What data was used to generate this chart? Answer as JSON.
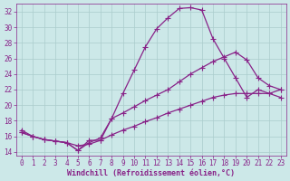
{
  "xlabel": "Windchill (Refroidissement éolien,°C)",
  "bg_color": "#cce8e8",
  "line_color": "#882288",
  "grid_color": "#aacccc",
  "xlim": [
    -0.5,
    23.5
  ],
  "ylim": [
    13.5,
    33.0
  ],
  "yticks": [
    14,
    16,
    18,
    20,
    22,
    24,
    26,
    28,
    30,
    32
  ],
  "xticks": [
    0,
    1,
    2,
    3,
    4,
    5,
    6,
    7,
    8,
    9,
    10,
    11,
    12,
    13,
    14,
    15,
    16,
    17,
    18,
    19,
    20,
    21,
    22,
    23
  ],
  "line1_x": [
    0,
    1,
    2,
    3,
    4,
    5,
    6,
    7,
    8,
    9,
    10,
    11,
    12,
    13,
    14,
    15,
    16,
    17,
    18,
    19,
    20,
    21,
    22,
    23
  ],
  "line1_y": [
    16.8,
    16.0,
    15.6,
    15.4,
    15.2,
    14.2,
    15.5,
    15.5,
    18.3,
    21.5,
    24.5,
    27.5,
    29.8,
    31.2,
    32.4,
    32.5,
    32.2,
    28.5,
    26.0,
    23.5,
    21.0,
    22.0,
    21.5,
    21.0
  ],
  "line2_x": [
    0,
    1,
    2,
    3,
    4,
    5,
    6,
    7,
    8,
    9,
    10,
    11,
    12,
    13,
    14,
    15,
    16,
    17,
    18,
    19,
    20,
    21,
    22,
    23
  ],
  "line2_y": [
    16.5,
    16.0,
    15.6,
    15.4,
    15.2,
    14.2,
    15.2,
    15.8,
    18.3,
    19.0,
    19.8,
    20.6,
    21.3,
    22.0,
    23.0,
    24.0,
    24.8,
    25.6,
    26.2,
    26.8,
    25.8,
    23.5,
    22.5,
    22.0
  ],
  "line3_x": [
    0,
    1,
    2,
    3,
    4,
    5,
    6,
    7,
    8,
    9,
    10,
    11,
    12,
    13,
    14,
    15,
    16,
    17,
    18,
    19,
    20,
    21,
    22,
    23
  ],
  "line3_y": [
    16.5,
    16.0,
    15.6,
    15.4,
    15.2,
    14.8,
    15.0,
    15.5,
    16.2,
    16.8,
    17.3,
    17.9,
    18.4,
    19.0,
    19.5,
    20.0,
    20.5,
    21.0,
    21.3,
    21.5,
    21.5,
    21.5,
    21.5,
    22.0
  ],
  "marker": "+",
  "markersize": 4,
  "linewidth": 0.9,
  "tick_fontsize": 5.5,
  "label_fontsize": 6.0
}
